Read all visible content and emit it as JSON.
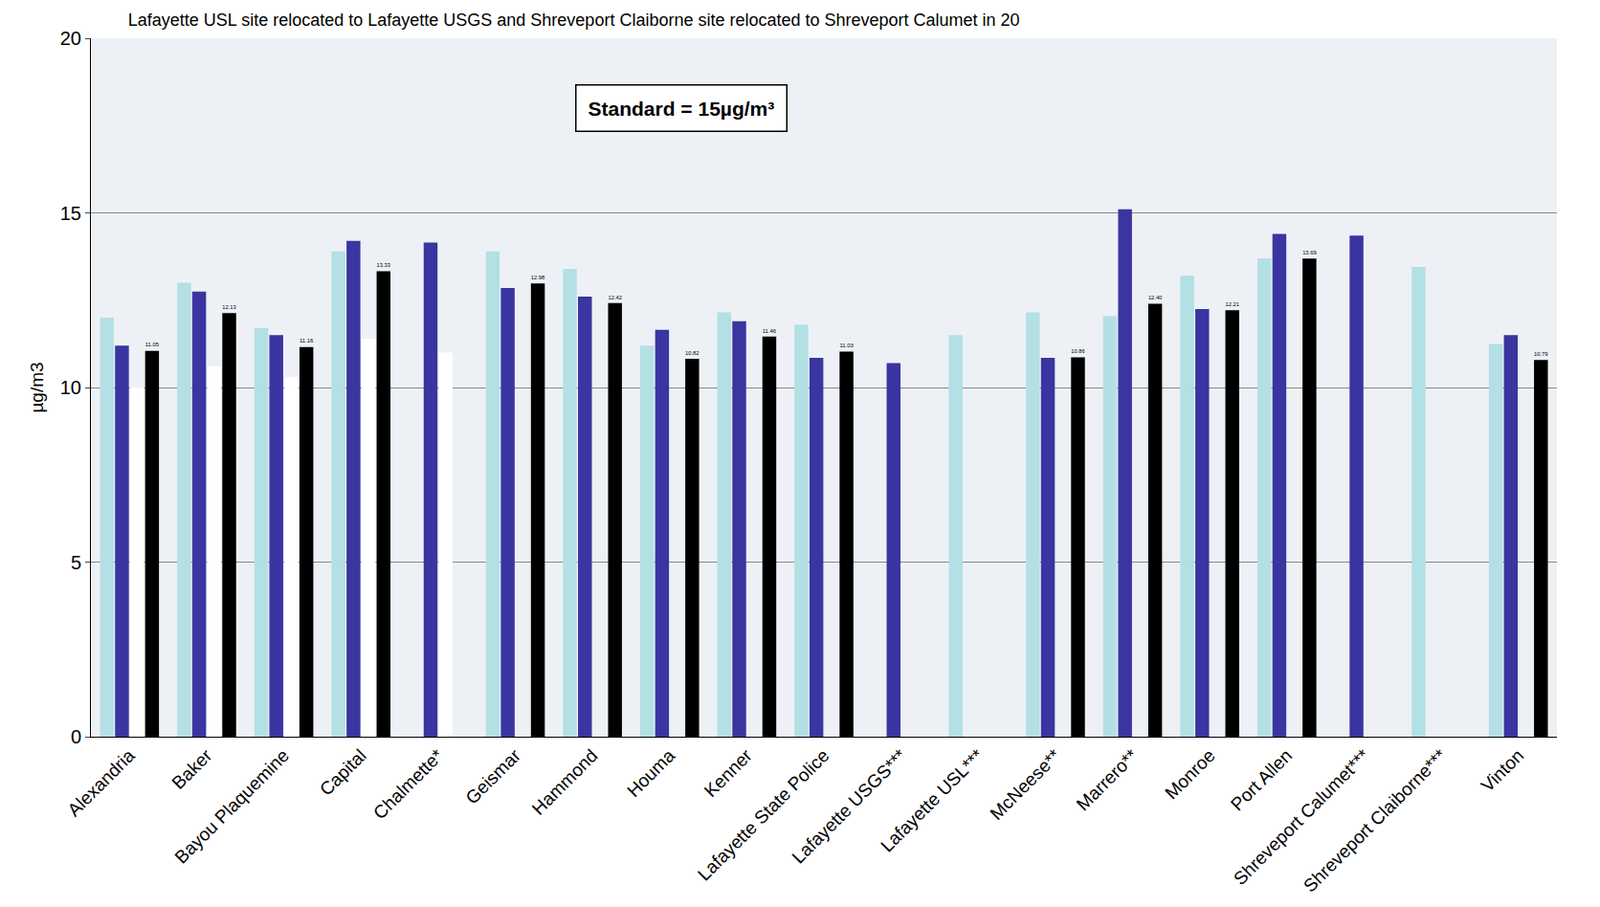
{
  "chart_data": {
    "type": "bar",
    "title": "Lafayette USL site relocated to Lafayette USGS and Shreveport Claiborne site relocated to Shreveport Calumet in 20",
    "y_label": "µg/m3",
    "annotations": [
      {
        "text": "Standard = 15µg/m³"
      }
    ],
    "categories": [
      "Alexandria",
      "Baker",
      "Bayou Plaquemine",
      "Capital",
      "Chalmette*",
      "Geismar",
      "Hammond",
      "Houma",
      "Kenner",
      "Lafayette State Police",
      "Lafayette USGS***",
      "Lafayette USL***",
      "McNeese**",
      "Marrero**",
      "Monroe",
      "Port Allen",
      "Shreveport Calumet***",
      "Shreveport Claiborne***",
      "Vinton"
    ],
    "series": [
      {
        "color": "#b3e0e4",
        "values": [
          12.0,
          13.0,
          11.7,
          13.9,
          null,
          13.9,
          13.4,
          11.2,
          12.15,
          11.8,
          null,
          11.5,
          12.15,
          12.05,
          13.2,
          13.7,
          null,
          13.45,
          11.25
        ]
      },
      {
        "color": "#3a35a0",
        "values": [
          11.2,
          12.75,
          11.5,
          14.2,
          14.15,
          12.85,
          12.6,
          11.65,
          11.9,
          10.85,
          10.7,
          null,
          10.85,
          15.1,
          12.25,
          14.4,
          14.35,
          null,
          11.5
        ]
      },
      {
        "color": "#ffffff",
        "values": [
          10.0,
          10.6,
          10.3,
          11.4,
          11.0,
          null,
          null,
          null,
          null,
          null,
          null,
          null,
          null,
          null,
          null,
          null,
          null,
          null,
          null
        ]
      },
      {
        "color": "#000000",
        "data_labels": true,
        "values": [
          11.05,
          12.13,
          11.16,
          13.33,
          null,
          12.98,
          12.42,
          10.82,
          11.46,
          11.03,
          null,
          null,
          10.86,
          12.4,
          12.21,
          13.69,
          null,
          null,
          10.79
        ],
        "value_labels": [
          "11.05",
          "12.13",
          "11.16",
          "13.33",
          null,
          "12.98",
          "12.42",
          "10.82",
          "11.46",
          "11.03",
          null,
          null,
          "10.86",
          "12.40",
          "12.21",
          "13.69",
          null,
          null,
          "10.79"
        ]
      }
    ],
    "ylim": [
      0,
      20
    ],
    "yticks": [
      0,
      5,
      10,
      15,
      20
    ],
    "grid": true
  }
}
